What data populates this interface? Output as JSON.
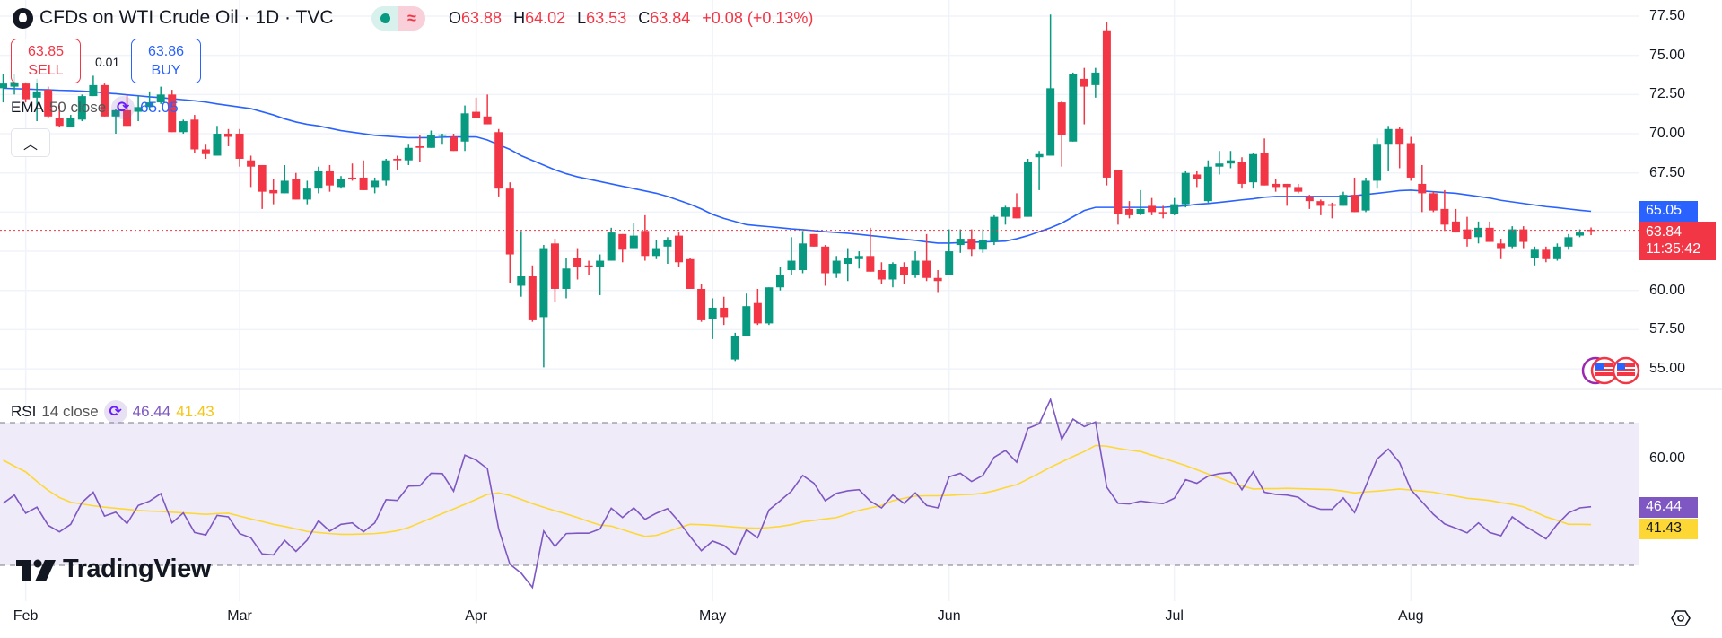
{
  "header": {
    "title": "CFDs on WTI Crude Oil · 1D · TVC",
    "market_status_icons": [
      "market-open-dot-icon",
      "approx-icon"
    ],
    "ohlc": {
      "o_label": "O",
      "o": "63.88",
      "h_label": "H",
      "h": "64.02",
      "l_label": "L",
      "l": "63.53",
      "c_label": "C",
      "c": "63.84",
      "change": "+0.08 (+0.13%)"
    }
  },
  "trade": {
    "sell_price": "63.85",
    "sell_label": "SELL",
    "spread": "0.01",
    "buy_price": "63.86",
    "buy_label": "BUY"
  },
  "ema_legend": {
    "name": "EMA",
    "params": "50 close",
    "value": "65.05"
  },
  "rsi_legend": {
    "name": "RSI",
    "params": "14 close",
    "value": "46.44",
    "ma_value": "41.43"
  },
  "price_tags": {
    "ema": "65.05",
    "last": "63.84",
    "countdown": "11:35:42",
    "rsi": "46.44",
    "rsi_ma": "41.43"
  },
  "logo": "TradingView",
  "colors": {
    "up": "#089981",
    "down": "#F23645",
    "ema": "#2962FF",
    "rsi": "#7E57C2",
    "rsi_ma": "#FDD835",
    "rsi_band": "#EFEBF8"
  },
  "chart_data": {
    "type": "candlestick",
    "interval": "1D",
    "price_axis": {
      "ticks": [
        "77.50",
        "75.00",
        "72.50",
        "70.00",
        "67.50",
        "60.00",
        "57.50",
        "55.00"
      ],
      "ylim": [
        54,
        78
      ]
    },
    "rsi_axis": {
      "ticks": [
        "60.00"
      ],
      "upper_band": 70,
      "middle": 50,
      "lower_band": 30
    },
    "month_ticks": [
      {
        "label": "Feb",
        "bar": 3
      },
      {
        "label": "Mar",
        "bar": 22
      },
      {
        "label": "Apr",
        "bar": 43
      },
      {
        "label": "May",
        "bar": 64
      },
      {
        "label": "Jun",
        "bar": 85
      },
      {
        "label": "Jul",
        "bar": 105
      },
      {
        "label": "Aug",
        "bar": 126
      }
    ],
    "ohlc_fields": [
      "open",
      "high",
      "low",
      "close"
    ],
    "candles": [
      [
        72.9,
        73.8,
        72.0,
        73.2
      ],
      [
        73.0,
        73.8,
        72.5,
        73.3
      ],
      [
        73.2,
        73.3,
        72.0,
        72.2
      ],
      [
        72.3,
        73.5,
        70.8,
        72.7
      ],
      [
        72.8,
        73.0,
        71.0,
        71.1
      ],
      [
        71.0,
        71.8,
        70.4,
        70.5
      ],
      [
        70.4,
        71.2,
        70.4,
        71.0
      ],
      [
        70.9,
        72.5,
        70.8,
        72.4
      ],
      [
        72.4,
        73.7,
        72.4,
        73.1
      ],
      [
        73.1,
        73.2,
        71.1,
        71.1
      ],
      [
        71.1,
        71.6,
        70.0,
        71.5
      ],
      [
        71.5,
        72.5,
        70.5,
        70.5
      ],
      [
        71.4,
        72.4,
        70.8,
        71.7
      ],
      [
        71.7,
        72.7,
        71.5,
        72.0
      ],
      [
        72.0,
        73.0,
        71.9,
        72.5
      ],
      [
        72.5,
        72.8,
        70.1,
        70.1
      ],
      [
        70.1,
        70.9,
        70.0,
        70.8
      ],
      [
        70.9,
        71.2,
        68.8,
        69.0
      ],
      [
        69.0,
        69.3,
        68.4,
        68.7
      ],
      [
        68.6,
        70.5,
        68.6,
        70.0
      ],
      [
        70.0,
        70.3,
        69.2,
        69.8
      ],
      [
        70.0,
        70.3,
        67.9,
        68.4
      ],
      [
        68.3,
        68.6,
        66.6,
        67.9
      ],
      [
        68.0,
        68.0,
        65.2,
        66.3
      ],
      [
        66.4,
        67.1,
        65.5,
        66.2
      ],
      [
        66.2,
        68.0,
        66.2,
        67.0
      ],
      [
        67.1,
        67.5,
        65.8,
        65.8
      ],
      [
        65.8,
        67.0,
        65.5,
        66.5
      ],
      [
        66.5,
        67.9,
        66.2,
        67.6
      ],
      [
        67.6,
        68.0,
        66.3,
        66.7
      ],
      [
        66.6,
        67.3,
        66.5,
        67.1
      ],
      [
        67.2,
        68.1,
        67.0,
        67.1
      ],
      [
        67.2,
        68.3,
        66.4,
        66.4
      ],
      [
        66.6,
        67.2,
        66.2,
        67.0
      ],
      [
        67.0,
        68.4,
        66.7,
        68.3
      ],
      [
        68.4,
        68.6,
        67.7,
        68.3
      ],
      [
        68.3,
        69.3,
        68.0,
        69.1
      ],
      [
        69.2,
        69.9,
        68.2,
        69.1
      ],
      [
        69.1,
        70.2,
        69.1,
        69.9
      ],
      [
        69.9,
        70.0,
        69.3,
        69.95
      ],
      [
        69.8,
        70.0,
        68.9,
        68.9
      ],
      [
        69.5,
        71.8,
        68.9,
        71.3
      ],
      [
        71.4,
        72.3,
        71.0,
        71.0
      ],
      [
        71.1,
        72.5,
        70.6,
        70.6
      ],
      [
        70.1,
        70.3,
        66.0,
        66.5
      ],
      [
        66.5,
        66.9,
        60.5,
        62.3
      ],
      [
        60.3,
        63.8,
        59.6,
        60.9
      ],
      [
        60.9,
        61.6,
        58.0,
        58.1
      ],
      [
        58.3,
        62.9,
        55.1,
        62.7
      ],
      [
        63.0,
        63.3,
        59.3,
        60.1
      ],
      [
        60.1,
        62.1,
        59.5,
        61.4
      ],
      [
        62.1,
        62.7,
        60.7,
        61.5
      ],
      [
        61.6,
        61.9,
        61.0,
        61.5
      ],
      [
        61.5,
        62.3,
        59.7,
        61.9
      ],
      [
        61.9,
        64.0,
        61.9,
        63.7
      ],
      [
        63.6,
        63.6,
        61.8,
        62.6
      ],
      [
        62.7,
        64.3,
        62.7,
        63.5
      ],
      [
        63.8,
        64.8,
        61.9,
        62.2
      ],
      [
        62.2,
        63.2,
        62.0,
        62.7
      ],
      [
        62.8,
        63.4,
        61.7,
        63.2
      ],
      [
        63.5,
        63.7,
        61.5,
        61.8
      ],
      [
        62.0,
        62.1,
        60.1,
        60.1
      ],
      [
        60.1,
        60.4,
        58.0,
        58.1
      ],
      [
        58.2,
        59.5,
        56.9,
        58.9
      ],
      [
        58.9,
        59.6,
        57.8,
        58.3
      ],
      [
        55.6,
        57.3,
        55.5,
        57.1
      ],
      [
        57.1,
        59.8,
        57.1,
        59.0
      ],
      [
        59.2,
        60.1,
        57.8,
        57.9
      ],
      [
        57.9,
        60.2,
        57.8,
        60.2
      ],
      [
        60.2,
        61.5,
        60.0,
        61.0
      ],
      [
        61.3,
        63.4,
        61.0,
        61.9
      ],
      [
        61.3,
        63.8,
        61.1,
        63.0
      ],
      [
        63.6,
        63.6,
        62.8,
        62.8
      ],
      [
        62.8,
        62.9,
        60.3,
        61.1
      ],
      [
        61.1,
        62.2,
        60.8,
        61.9
      ],
      [
        61.7,
        62.7,
        60.6,
        62.1
      ],
      [
        62.0,
        62.5,
        61.4,
        62.2
      ],
      [
        62.2,
        64.0,
        61.2,
        61.2
      ],
      [
        61.3,
        61.8,
        60.4,
        60.7
      ],
      [
        60.7,
        61.8,
        60.2,
        61.7
      ],
      [
        61.5,
        61.8,
        60.4,
        61.0
      ],
      [
        61.0,
        62.5,
        60.8,
        61.9
      ],
      [
        61.9,
        63.6,
        60.6,
        60.8
      ],
      [
        60.8,
        61.3,
        59.9,
        60.6
      ],
      [
        61.0,
        63.9,
        61.0,
        62.5
      ],
      [
        62.9,
        63.9,
        62.4,
        63.3
      ],
      [
        63.3,
        63.9,
        62.2,
        62.6
      ],
      [
        62.6,
        63.9,
        62.4,
        63.2
      ],
      [
        63.1,
        64.8,
        62.9,
        64.7
      ],
      [
        64.7,
        65.4,
        64.2,
        65.3
      ],
      [
        65.3,
        66.2,
        64.6,
        64.6
      ],
      [
        64.7,
        68.4,
        64.7,
        68.2
      ],
      [
        68.5,
        68.9,
        66.4,
        68.7
      ],
      [
        68.6,
        77.6,
        68.6,
        72.9
      ],
      [
        72.0,
        72.1,
        67.9,
        69.9
      ],
      [
        69.5,
        73.9,
        69.5,
        73.8
      ],
      [
        73.5,
        74.2,
        70.6,
        73.0
      ],
      [
        73.1,
        74.2,
        72.3,
        73.9
      ],
      [
        76.6,
        77.1,
        66.7,
        67.2
      ],
      [
        67.7,
        67.7,
        64.2,
        64.9
      ],
      [
        65.2,
        65.7,
        64.6,
        64.8
      ],
      [
        64.9,
        66.4,
        64.8,
        65.2
      ],
      [
        65.4,
        65.9,
        64.8,
        65.0
      ],
      [
        65.0,
        65.4,
        64.6,
        64.95
      ],
      [
        64.9,
        65.9,
        64.8,
        65.5
      ],
      [
        65.5,
        67.6,
        65.3,
        67.5
      ],
      [
        67.4,
        67.6,
        66.6,
        67.1
      ],
      [
        65.7,
        68.3,
        65.6,
        67.9
      ],
      [
        67.9,
        68.9,
        67.4,
        68.1
      ],
      [
        68.1,
        68.9,
        67.8,
        68.3
      ],
      [
        68.2,
        68.5,
        66.5,
        66.8
      ],
      [
        66.9,
        68.8,
        66.5,
        68.7
      ],
      [
        68.8,
        69.7,
        66.7,
        66.7
      ],
      [
        66.8,
        67.1,
        66.3,
        66.6
      ],
      [
        66.8,
        66.8,
        65.4,
        66.6
      ],
      [
        66.6,
        66.8,
        66.2,
        66.3
      ],
      [
        66.0,
        66.1,
        65.2,
        65.7
      ],
      [
        65.7,
        65.8,
        64.8,
        65.4
      ],
      [
        65.5,
        65.6,
        64.6,
        65.4
      ],
      [
        65.4,
        66.3,
        65.4,
        66.1
      ],
      [
        66.1,
        67.2,
        65.0,
        65.0
      ],
      [
        65.1,
        67.2,
        65.0,
        67.0
      ],
      [
        67.0,
        69.7,
        66.5,
        69.3
      ],
      [
        69.3,
        70.5,
        67.6,
        70.3
      ],
      [
        70.3,
        70.4,
        67.8,
        69.3
      ],
      [
        69.4,
        69.8,
        67.0,
        67.2
      ],
      [
        66.8,
        68.0,
        65.0,
        66.2
      ],
      [
        66.2,
        66.3,
        65.0,
        65.1
      ],
      [
        65.2,
        66.4,
        63.8,
        64.2
      ],
      [
        64.4,
        65.2,
        63.7,
        63.7
      ],
      [
        63.9,
        64.7,
        62.8,
        63.3
      ],
      [
        63.4,
        64.4,
        63.0,
        64.0
      ],
      [
        64.0,
        64.4,
        63.1,
        63.1
      ],
      [
        63.0,
        63.3,
        62.0,
        62.7
      ],
      [
        62.8,
        64.1,
        62.7,
        63.9
      ],
      [
        63.9,
        64.1,
        62.7,
        63.1
      ],
      [
        62.1,
        62.8,
        61.6,
        62.6
      ],
      [
        62.6,
        62.8,
        61.8,
        62.0
      ],
      [
        62.0,
        63.0,
        61.9,
        62.8
      ],
      [
        62.8,
        63.6,
        62.6,
        63.4
      ],
      [
        63.5,
        63.9,
        63.4,
        63.7
      ],
      [
        63.88,
        64.02,
        63.53,
        63.84
      ]
    ],
    "ema_50": [
      72.9,
      72.87,
      72.85,
      72.82,
      72.8,
      72.77,
      72.75,
      72.72,
      72.68,
      72.6,
      72.55,
      72.48,
      72.42,
      72.35,
      72.3,
      72.23,
      72.17,
      72.1,
      72.02,
      71.9,
      71.8,
      71.7,
      71.6,
      71.4,
      71.2,
      70.95,
      70.75,
      70.6,
      70.5,
      70.35,
      70.2,
      70.1,
      70.0,
      69.9,
      69.85,
      69.8,
      69.75,
      69.75,
      69.75,
      69.78,
      69.8,
      69.8,
      69.8,
      69.6,
      69.3,
      69.0,
      68.6,
      68.3,
      68.0,
      67.7,
      67.45,
      67.25,
      67.1,
      66.95,
      66.8,
      66.65,
      66.5,
      66.35,
      66.2,
      66.0,
      65.75,
      65.5,
      65.2,
      64.85,
      64.6,
      64.4,
      64.2,
      64.13,
      64.07,
      64.0,
      63.93,
      63.88,
      63.82,
      63.75,
      63.7,
      63.65,
      63.58,
      63.5,
      63.43,
      63.35,
      63.27,
      63.2,
      63.1,
      63.02,
      63.02,
      63.05,
      63.07,
      63.1,
      63.12,
      63.15,
      63.3,
      63.5,
      63.75,
      64.0,
      64.3,
      64.7,
      65.1,
      65.3,
      65.3,
      65.3,
      65.3,
      65.3,
      65.3,
      65.3,
      65.35,
      65.4,
      65.5,
      65.55,
      65.62,
      65.7,
      65.78,
      65.85,
      65.95,
      66.0,
      66.0,
      66.0,
      66.0,
      66.0,
      66.0,
      66.0,
      66.05,
      66.12,
      66.2,
      66.28,
      66.37,
      66.4,
      66.35,
      66.3,
      66.25,
      66.2,
      66.1,
      66.0,
      65.9,
      65.75,
      65.65,
      65.55,
      65.45,
      65.35,
      65.28,
      65.2,
      65.12,
      65.05
    ],
    "rsi_14": [
      47.4,
      49.7,
      44.6,
      46.3,
      41.2,
      39.4,
      41.5,
      47.6,
      50.5,
      43.8,
      44.9,
      41.7,
      46.8,
      48.0,
      50.1,
      41.9,
      44.7,
      39.2,
      38.5,
      44.0,
      43.6,
      38.9,
      37.7,
      33.2,
      32.9,
      37.0,
      33.9,
      37.1,
      42.5,
      39.6,
      41.5,
      41.9,
      39.4,
      41.9,
      48.4,
      48.2,
      52.2,
      52.3,
      55.8,
      55.7,
      50.8,
      60.9,
      59.5,
      57.1,
      40.2,
      30.3,
      27.8,
      23.8,
      39.6,
      35.3,
      38.9,
      39.0,
      39.0,
      40.2,
      46.0,
      43.4,
      46.1,
      42.9,
      44.6,
      45.9,
      42.3,
      38.1,
      34.1,
      36.8,
      35.6,
      33.0,
      40.0,
      37.7,
      45.5,
      48.1,
      50.8,
      55.2,
      53.0,
      48.1,
      50.2,
      50.9,
      51.2,
      48.0,
      46.1,
      49.7,
      47.4,
      50.3,
      46.8,
      46.1,
      54.8,
      55.8,
      53.5,
      55.2,
      60.3,
      62.2,
      58.9,
      68.4,
      69.7,
      76.5,
      65.3,
      71.0,
      68.9,
      70.2,
      51.9,
      47.4,
      47.2,
      48.0,
      47.6,
      47.3,
      48.8,
      54.0,
      53.0,
      55.0,
      55.7,
      56.0,
      51.2,
      56.2,
      50.5,
      49.9,
      49.7,
      49.1,
      46.7,
      45.7,
      45.7,
      48.9,
      44.8,
      52.2,
      59.8,
      62.6,
      58.8,
      51.2,
      47.8,
      44.3,
      41.6,
      40.4,
      39.1,
      41.9,
      39.2,
      38.3,
      43.6,
      41.3,
      39.4,
      37.4,
      41.5,
      44.7,
      46.1,
      46.44
    ],
    "rsi_ma": [
      59.5,
      57.8,
      56.2,
      53.5,
      51.0,
      49.0,
      47.7,
      47.2,
      46.7,
      46.3,
      46.0,
      45.7,
      45.4,
      45.2,
      45.1,
      44.9,
      44.7,
      44.5,
      44.3,
      44.5,
      44.6,
      43.8,
      43.0,
      42.3,
      41.5,
      40.9,
      40.2,
      39.5,
      39.2,
      38.9,
      38.7,
      38.7,
      38.8,
      38.9,
      39.2,
      39.7,
      40.6,
      41.9,
      43.2,
      44.5,
      45.8,
      47.1,
      48.5,
      49.9,
      50.3,
      49.6,
      48.5,
      47.3,
      46.3,
      45.3,
      44.4,
      43.4,
      42.3,
      41.3,
      41.0,
      40.0,
      39.0,
      38.1,
      38.4,
      39.4,
      40.5,
      41.5,
      41.4,
      41.2,
      41.0,
      40.7,
      40.5,
      40.4,
      40.6,
      40.9,
      41.4,
      42.2,
      42.6,
      43.0,
      43.4,
      44.4,
      45.4,
      46.1,
      46.8,
      48.1,
      48.8,
      49.4,
      49.5,
      49.5,
      49.6,
      49.8,
      49.9,
      50.2,
      50.9,
      51.8,
      52.6,
      54.2,
      55.8,
      57.5,
      59.0,
      60.5,
      61.9,
      63.6,
      63.4,
      62.8,
      62.3,
      61.9,
      60.9,
      60.0,
      59.0,
      58.0,
      56.8,
      55.6,
      54.5,
      53.3,
      52.3,
      51.4,
      51.5,
      51.5,
      51.6,
      51.5,
      51.4,
      51.3,
      51.2,
      50.8,
      50.3,
      50.6,
      50.8,
      51.1,
      51.4,
      51.1,
      50.8,
      50.5,
      49.9,
      49.4,
      48.8,
      48.5,
      48.2,
      47.6,
      47.1,
      46.4,
      45.0,
      43.6,
      42.6,
      41.5,
      41.5,
      41.43
    ]
  }
}
